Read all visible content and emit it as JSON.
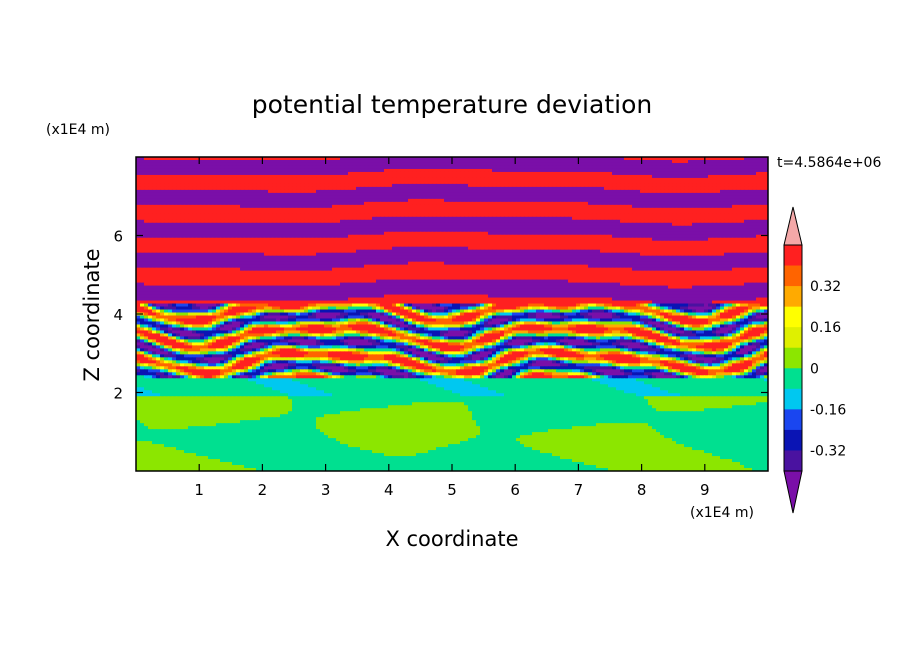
{
  "chart_data": {
    "type": "heatmap",
    "title": "potential temperature deviation",
    "xlabel": "X coordinate",
    "ylabel": "Z coordinate",
    "x_unit": "(x1E4 m)",
    "z_unit": "(x1E4 m)",
    "time_label": "t=4.5864e+06",
    "xlim": [
      0,
      10
    ],
    "ylim": [
      0,
      8
    ],
    "x_ticks": [
      "1",
      "2",
      "3",
      "4",
      "5",
      "6",
      "7",
      "8",
      "9"
    ],
    "y_ticks": [
      "2",
      "4",
      "6"
    ],
    "colorbar": {
      "levels": [
        -0.48,
        -0.4,
        -0.32,
        -0.24,
        -0.16,
        -0.08,
        0,
        0.08,
        0.16,
        0.24,
        0.32,
        0.4,
        0.48
      ],
      "colors": [
        "#7a0fa8",
        "#4a12a0",
        "#0a14b4",
        "#1a46f0",
        "#00c8f0",
        "#00e090",
        "#8ce600",
        "#dff000",
        "#ffff00",
        "#ffaa00",
        "#ff6400",
        "#ff2020",
        "#f4a8a8"
      ],
      "tick_labels": [
        "0.32",
        "0.16",
        "0",
        "-0.16",
        "-0.32"
      ],
      "extend": "both"
    },
    "field": {
      "description_layers": [
        {
          "z_range": [
            0,
            1.9
          ],
          "pattern": "mixed",
          "values": [
            -0.04,
            0.04
          ]
        },
        {
          "z_range": [
            1.9,
            2.4
          ],
          "pattern": "band",
          "values": [
            -0.06,
            -0.12
          ]
        },
        {
          "z_range": [
            2.4,
            4.3
          ],
          "pattern": "turbulent",
          "values": [
            -0.44,
            0.44
          ]
        },
        {
          "z_range": [
            4.3,
            8.0
          ],
          "pattern": "stripes",
          "values": [
            -0.44,
            0.44
          ]
        }
      ]
    }
  }
}
